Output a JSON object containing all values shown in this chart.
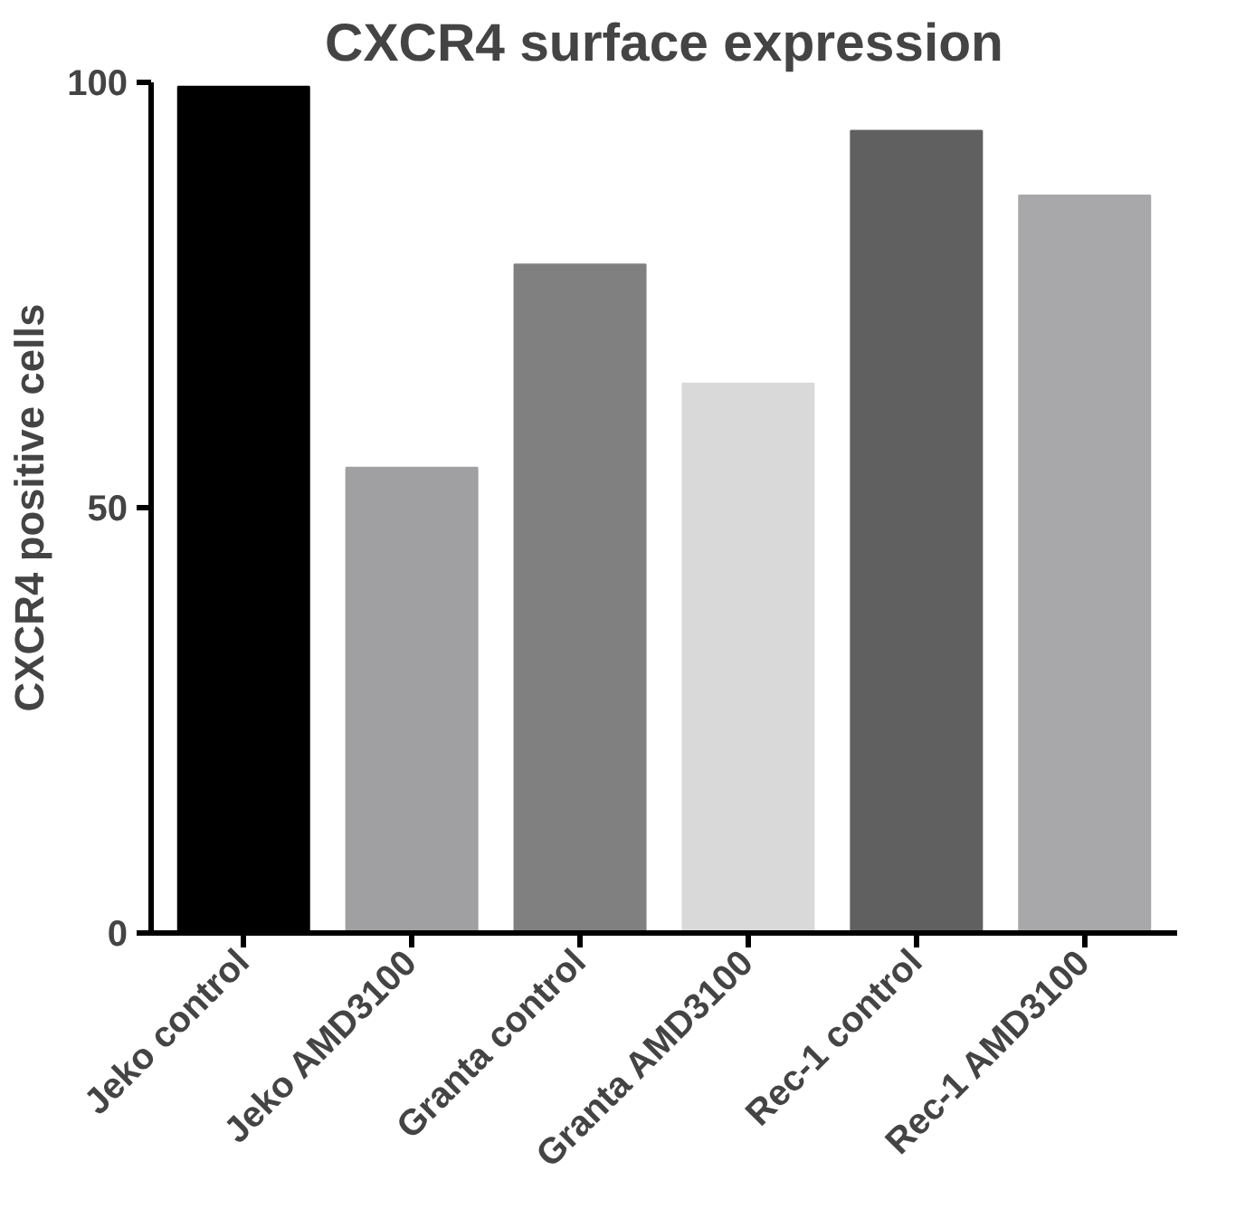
{
  "chart_data": {
    "type": "bar",
    "title": "CXCR4 surface expression",
    "ylabel": "CXCR4 positive cells",
    "categories": [
      "Jeko control",
      "Jeko AMD3100",
      "Granta control",
      "Granta AMD3100",
      "Rec-1 control",
      "Rec-1 AMD3100"
    ],
    "values": [
      99.5,
      54.7,
      78.6,
      64.6,
      94.3,
      86.7
    ],
    "colors": [
      "#000000",
      "#a0a0a2",
      "#808080",
      "#d9d9d9",
      "#606060",
      "#a8a8aa"
    ],
    "ylim": [
      0,
      100
    ],
    "yticks": [
      0,
      50,
      100
    ],
    "grid": false
  }
}
